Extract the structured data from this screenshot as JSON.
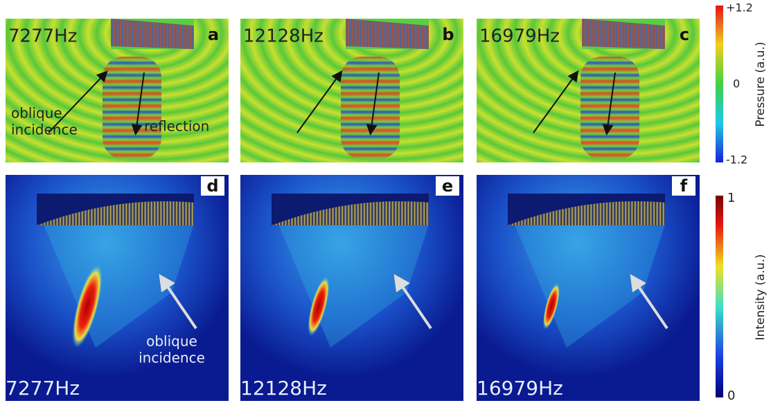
{
  "panels": [
    {
      "letter": "a",
      "frequency": "7277Hz",
      "annotation_lines": [
        "oblique",
        "incidence"
      ],
      "reflection": "reflection"
    },
    {
      "letter": "b",
      "frequency": "12128Hz"
    },
    {
      "letter": "c",
      "frequency": "16979Hz"
    },
    {
      "letter": "d",
      "frequency": "7277Hz",
      "annotation_lines": [
        "oblique",
        "incidence"
      ]
    },
    {
      "letter": "e",
      "frequency": "12128Hz"
    },
    {
      "letter": "f",
      "frequency": "16979Hz"
    }
  ],
  "colorbars": {
    "pressure": {
      "title": "Pressure (a.u.)",
      "ticks": [
        "+1.2",
        "0",
        "-1.2"
      ]
    },
    "intensity": {
      "title": "Intensity (a.u.)",
      "ticks": [
        "1",
        "0"
      ]
    }
  }
}
